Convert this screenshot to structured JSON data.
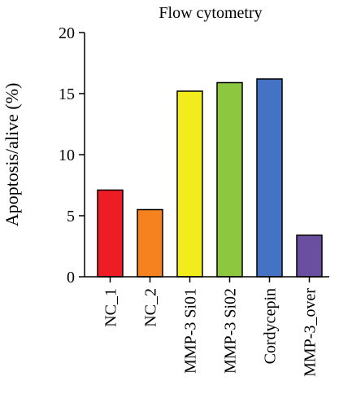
{
  "chart_data": {
    "type": "bar",
    "title": "Flow cytometry",
    "xlabel": "",
    "ylabel": "Apoptosis/alive (%)",
    "ylim": [
      0,
      20
    ],
    "yticks": [
      0,
      5,
      10,
      15,
      20
    ],
    "grid": false,
    "legend": "none",
    "categories": [
      "NC_1",
      "NC_2",
      "MMP-3 Si01",
      "MMP-3 Si02",
      "Cordycepin",
      "MMP-3_over"
    ],
    "values": [
      7.1,
      5.5,
      15.2,
      15.9,
      16.2,
      3.4
    ],
    "colors": [
      "#ee1c25",
      "#f5821f",
      "#f2ec1d",
      "#8dc63f",
      "#4472c4",
      "#6a4ea0"
    ]
  }
}
